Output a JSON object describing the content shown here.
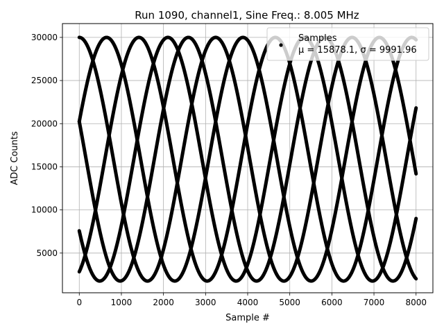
{
  "chart_data": {
    "type": "scatter",
    "title": "Run 1090, channel1, Sine Freq.: 8.005 MHz",
    "xlabel": "Sample #",
    "ylabel": "ADC Counts",
    "xlim": [
      -400,
      8400
    ],
    "ylim": [
      400,
      31600
    ],
    "x_ticks": [
      0,
      1000,
      2000,
      3000,
      4000,
      5000,
      6000,
      7000,
      8000
    ],
    "y_ticks": [
      5000,
      10000,
      15000,
      20000,
      25000,
      30000
    ],
    "grid": true,
    "legend_position": "upper right",
    "series": [
      {
        "name": "Samples",
        "stats_label": "μ = 15878.1, σ = 9991.96",
        "color": "#000000",
        "marker": "dot",
        "n_points": 8000,
        "model": {
          "offset": 15878,
          "amplitude": 14120,
          "period_samples": 3240,
          "phases_rad": [
            1.5708,
            0.3142,
            -1.1781,
            -2.5132,
            2.8274
          ]
        }
      }
    ]
  }
}
